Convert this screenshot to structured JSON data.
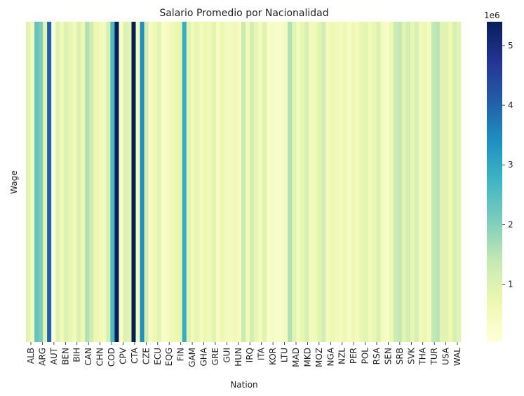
{
  "chart_data": {
    "type": "heatmap",
    "title": "Salario Promedio por Nacionalidad",
    "xlabel": "Nation",
    "ylabel": "Wage",
    "colorbar": {
      "offset_label": "1e6",
      "ticks": [
        "1",
        "2",
        "3",
        "4",
        "5"
      ],
      "tick_values": [
        1,
        2,
        3,
        4,
        5
      ],
      "min": 0.03,
      "max": 5.4,
      "colormap": "YlGnBu"
    },
    "x_tick_labels": [
      "ALB",
      "ARG",
      "AUT",
      "BEN",
      "BIH",
      "CAN",
      "CHN",
      "COD",
      "CPV",
      "CTA",
      "CZE",
      "ECU",
      "EQG",
      "FIN",
      "GAM",
      "GHA",
      "GRE",
      "GUI",
      "HUN",
      "IRQ",
      "ITA",
      "KOR",
      "LTU",
      "MAD",
      "MKD",
      "MOZ",
      "NGA",
      "NZL",
      "PER",
      "POL",
      "RSA",
      "SEN",
      "SRB",
      "SVK",
      "THA",
      "TUR",
      "USA",
      "WAL"
    ],
    "values": [
      0.9,
      0.5,
      2.3,
      2.1,
      0.9,
      4.0,
      0.03,
      1.0,
      0.6,
      1.0,
      0.8,
      0.6,
      1.0,
      0.7,
      1.6,
      1.2,
      0.7,
      0.6,
      0.5,
      1.1,
      2.6,
      5.4,
      0.3,
      1.0,
      0.9,
      5.4,
      0.5,
      3.4,
      1.2,
      0.4,
      0.7,
      0.9,
      0.3,
      0.4,
      0.6,
      0.7,
      0.8,
      2.9,
      0.9,
      0.6,
      0.8,
      0.5,
      0.7,
      0.6,
      0.9,
      0.4,
      0.7,
      0.5,
      0.5,
      0.6,
      0.4,
      1.3,
      0.6,
      1.2,
      0.8,
      0.5,
      0.9,
      0.3,
      0.4,
      0.3,
      0.3,
      0.5,
      1.6,
      0.9,
      0.5,
      0.8,
      1.1,
      0.5,
      0.6,
      0.9,
      1.2,
      0.5,
      0.7,
      0.6,
      0.5,
      0.7,
      0.4,
      0.6,
      0.5,
      0.8,
      0.9,
      0.6,
      0.8,
      1.0,
      0.5,
      0.3,
      0.7,
      1.3,
      1.4,
      0.9,
      1.2,
      0.8,
      1.1,
      0.6,
      0.7,
      0.5,
      1.4,
      1.5,
      0.9,
      0.9,
      0.7,
      1.1,
      0.9
    ]
  }
}
